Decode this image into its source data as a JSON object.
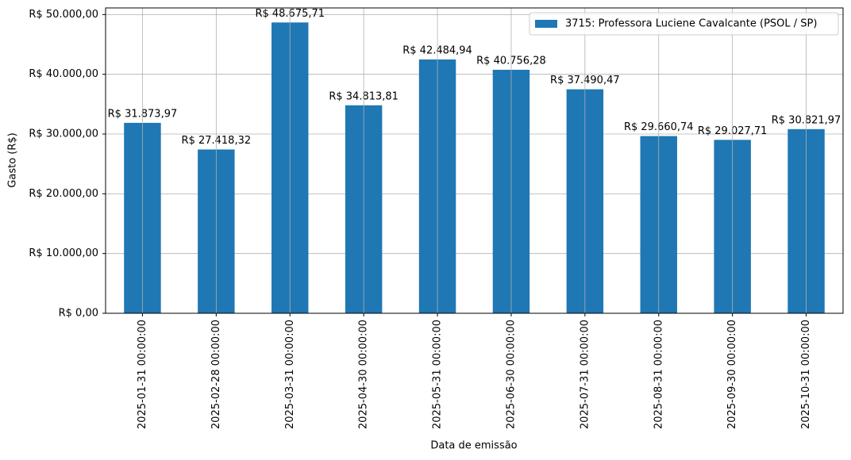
{
  "chart_data": {
    "type": "bar",
    "xlabel": "Data de emissão",
    "ylabel": "Gasto (R$)",
    "categories": [
      "2025-01-31 00:00:00",
      "2025-02-28 00:00:00",
      "2025-03-31 00:00:00",
      "2025-04-30 00:00:00",
      "2025-05-31 00:00:00",
      "2025-06-30 00:00:00",
      "2025-07-31 00:00:00",
      "2025-08-31 00:00:00",
      "2025-09-30 00:00:00",
      "2025-10-31 00:00:00"
    ],
    "series": [
      {
        "name": "3715: Professora Luciene Cavalcante (PSOL / SP)",
        "color": "#1f77b4",
        "values": [
          31873.97,
          27418.32,
          48675.71,
          34813.81,
          42484.94,
          40756.28,
          37490.47,
          29660.74,
          29027.71,
          30821.97
        ],
        "value_labels": [
          "R$ 31.873,97",
          "R$ 27.418,32",
          "R$ 48.675,71",
          "R$ 34.813,81",
          "R$ 42.484,94",
          "R$ 40.756,28",
          "R$ 37.490,47",
          "R$ 29.660,74",
          "R$ 29.027,71",
          "R$ 30.821,97"
        ]
      }
    ],
    "ylim": [
      0,
      51109.5
    ],
    "yticks": [
      {
        "value": 0,
        "label": "R$ 0,00"
      },
      {
        "value": 10000,
        "label": "R$ 10.000,00"
      },
      {
        "value": 20000,
        "label": "R$ 20.000,00"
      },
      {
        "value": 30000,
        "label": "R$ 30.000,00"
      },
      {
        "value": 40000,
        "label": "R$ 40.000,00"
      },
      {
        "value": 50000,
        "label": "R$ 50.000,00"
      }
    ],
    "grid": true,
    "legend": "upper right"
  }
}
